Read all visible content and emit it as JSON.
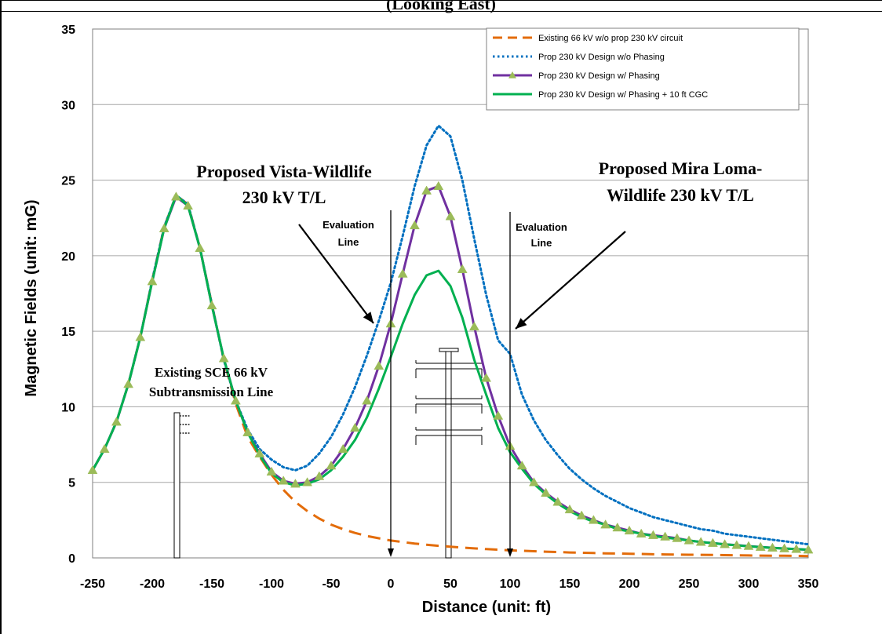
{
  "page": {
    "title": "(Looking East)"
  },
  "colors": {
    "existing": "#E36C0A",
    "no_phasing": "#0070C0",
    "phasing": "#7030A0",
    "phasing_marker": "#9BBB59",
    "cgc": "#00B050",
    "grid": "#A6A6A6"
  },
  "chart_data": {
    "type": "line",
    "xlabel": "Distance  (unit: ft)",
    "ylabel": "Magnetic Fields (unit: mG)",
    "xlim": [
      -250,
      350
    ],
    "ylim": [
      0,
      35
    ],
    "x_ticks": [
      "-250",
      "-200",
      "-150",
      "-100",
      "-50",
      "0",
      "50",
      "100",
      "150",
      "200",
      "250",
      "300",
      "350"
    ],
    "y_ticks": [
      "0",
      "5",
      "10",
      "15",
      "20",
      "25",
      "30",
      "35"
    ],
    "grid": "horizontal",
    "legend_position": "top-right",
    "x": [
      -250,
      -240,
      -230,
      -220,
      -210,
      -200,
      -190,
      -180,
      -170,
      -160,
      -150,
      -140,
      -130,
      -120,
      -110,
      -100,
      -90,
      -80,
      -70,
      -60,
      -50,
      -40,
      -30,
      -20,
      -10,
      0,
      10,
      20,
      30,
      40,
      50,
      60,
      70,
      80,
      90,
      100,
      110,
      120,
      130,
      140,
      150,
      160,
      170,
      180,
      190,
      200,
      210,
      220,
      230,
      240,
      250,
      260,
      270,
      280,
      290,
      300,
      310,
      320,
      330,
      340,
      350
    ],
    "series": [
      {
        "name": "Existing 66 kV w/o prop 230 kV circuit",
        "style": "dashed",
        "values": [
          5.8,
          7.2,
          9.0,
          11.5,
          14.6,
          18.4,
          21.9,
          24.0,
          23.4,
          20.5,
          16.8,
          13.1,
          10.2,
          8.0,
          6.7,
          5.5,
          4.5,
          3.7,
          3.1,
          2.6,
          2.2,
          1.9,
          1.65,
          1.45,
          1.3,
          1.15,
          1.05,
          0.95,
          0.87,
          0.8,
          0.74,
          0.68,
          0.63,
          0.58,
          0.54,
          0.5,
          0.47,
          0.44,
          0.41,
          0.39,
          0.36,
          0.34,
          0.32,
          0.3,
          0.29,
          0.27,
          0.26,
          0.24,
          0.23,
          0.22,
          0.21,
          0.2,
          0.19,
          0.18,
          0.17,
          0.16,
          0.15,
          0.14,
          0.14,
          0.13,
          0.12
        ]
      },
      {
        "name": "Prop 230 kV Design w/o Phasing",
        "style": "dotted",
        "values": [
          5.8,
          7.2,
          9.0,
          11.5,
          14.6,
          18.4,
          21.9,
          24.0,
          23.4,
          20.5,
          16.8,
          13.1,
          10.4,
          8.5,
          7.2,
          6.5,
          6.0,
          5.8,
          6.1,
          6.9,
          8.0,
          9.5,
          11.3,
          13.4,
          15.7,
          18.2,
          21.3,
          24.6,
          27.3,
          28.6,
          27.9,
          25.0,
          21.1,
          17.4,
          14.4,
          13.5,
          10.8,
          9.1,
          7.8,
          6.8,
          5.9,
          5.2,
          4.6,
          4.1,
          3.7,
          3.3,
          3.0,
          2.7,
          2.5,
          2.3,
          2.1,
          1.9,
          1.8,
          1.6,
          1.5,
          1.4,
          1.3,
          1.2,
          1.1,
          1.0,
          0.9
        ]
      },
      {
        "name": "Prop 230 kV Design w/ Phasing",
        "style": "solid-markers",
        "values": [
          5.8,
          7.2,
          9.0,
          11.5,
          14.6,
          18.3,
          21.8,
          23.9,
          23.3,
          20.5,
          16.7,
          13.2,
          10.4,
          8.3,
          6.9,
          5.7,
          5.1,
          4.9,
          5.0,
          5.4,
          6.1,
          7.2,
          8.6,
          10.4,
          12.7,
          15.5,
          18.8,
          22.0,
          24.3,
          24.6,
          22.6,
          19.1,
          15.3,
          11.9,
          9.4,
          7.4,
          6.1,
          5.0,
          4.3,
          3.7,
          3.2,
          2.8,
          2.5,
          2.2,
          2.0,
          1.8,
          1.6,
          1.5,
          1.4,
          1.3,
          1.15,
          1.05,
          0.98,
          0.9,
          0.84,
          0.78,
          0.72,
          0.67,
          0.62,
          0.58,
          0.54
        ]
      },
      {
        "name": "Prop 230 kV Design w/ Phasing + 10 ft CGC",
        "style": "solid",
        "values": [
          5.8,
          7.2,
          9.0,
          11.5,
          14.6,
          18.3,
          21.8,
          24.0,
          23.3,
          20.5,
          16.7,
          13.2,
          10.4,
          8.3,
          6.8,
          5.6,
          5.0,
          4.8,
          4.9,
          5.2,
          5.8,
          6.7,
          7.8,
          9.3,
          11.2,
          13.3,
          15.5,
          17.4,
          18.7,
          19.0,
          18.0,
          15.9,
          13.1,
          10.8,
          8.6,
          7.0,
          5.9,
          4.9,
          4.2,
          3.6,
          3.1,
          2.7,
          2.4,
          2.2,
          1.9,
          1.75,
          1.6,
          1.45,
          1.35,
          1.25,
          1.15,
          1.05,
          0.97,
          0.9,
          0.83,
          0.77,
          0.71,
          0.66,
          0.62,
          0.58,
          0.54
        ]
      }
    ],
    "annotations": {
      "vista_line1": "Proposed Vista-Wildlife",
      "vista_line2": "230 kV T/L",
      "mira_line1": "Proposed Mira Loma-",
      "mira_line2": "Wildlife 230 kV T/L",
      "eval_left_1": "Evaluation",
      "eval_left_2": "Line",
      "eval_right_1": "Evaluation",
      "eval_right_2": "Line",
      "sce_line1": "Existing SCE 66 kV",
      "sce_line2": "Subtransmission Line"
    },
    "evaluation_lines_x": [
      0,
      100
    ]
  }
}
